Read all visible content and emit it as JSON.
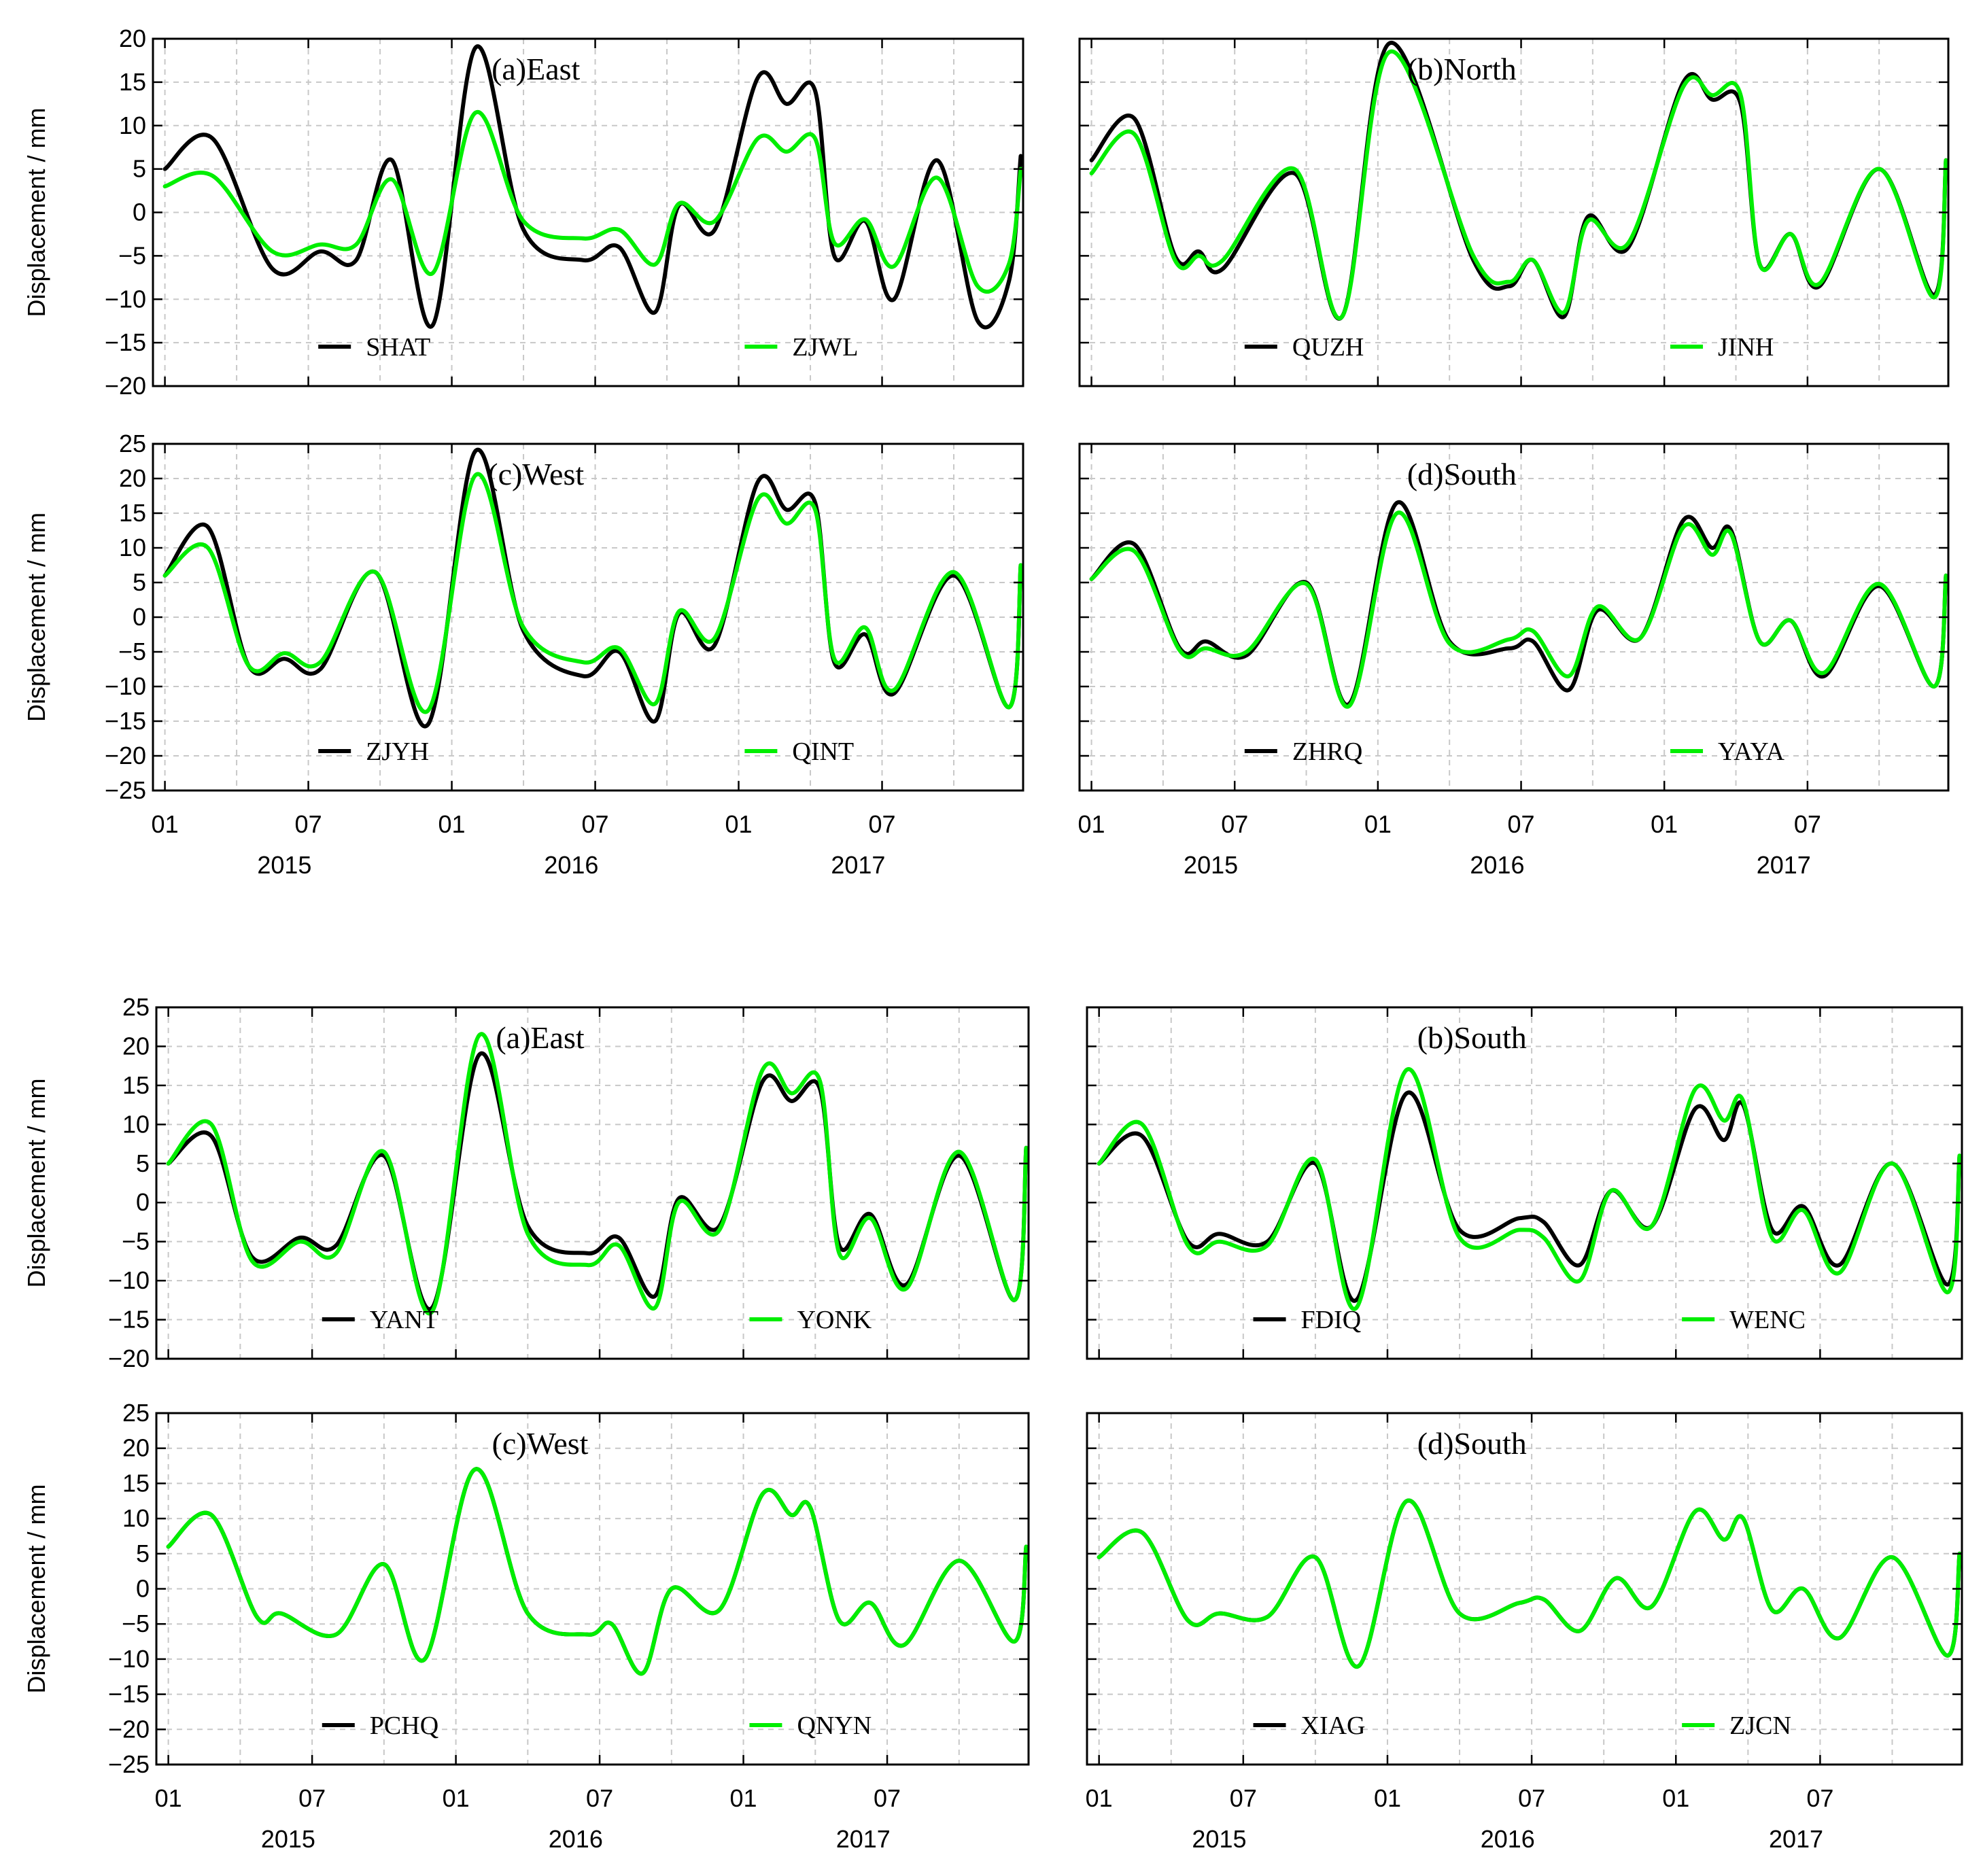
{
  "figure": {
    "ylabel": "Displacement / mm",
    "x_tick_labels": [
      "01",
      "07",
      "01",
      "07",
      "01",
      "07"
    ],
    "year_labels": [
      "2015",
      "2016",
      "2017"
    ],
    "series_colors": [
      "#000000",
      "#00ee00"
    ]
  },
  "chart_data": [
    {
      "type": "line",
      "title": "(a)East",
      "ylim": [
        -20,
        20
      ],
      "yticks": [
        -20,
        -15,
        -10,
        -5,
        0,
        5,
        10,
        15,
        20
      ],
      "x": [
        0,
        2,
        4.5,
        6.5,
        8,
        9.5,
        11.2,
        13,
        15,
        17.5,
        19,
        20.5,
        21.5,
        23,
        24.8,
        26,
        27.2,
        28,
        29.3,
        30.5,
        32.3,
        34,
        35.3,
        35.8
      ],
      "series": [
        {
          "name": "SHAT",
          "values": [
            5,
            8.5,
            -6.5,
            -4.5,
            -5.5,
            6,
            -13,
            19,
            -2,
            -5.5,
            -4,
            -11.5,
            0.8,
            -2,
            15.5,
            12.5,
            14,
            -5,
            -1,
            -10,
            6,
            -12.5,
            -8,
            6.5
          ]
        },
        {
          "name": "ZJWL",
          "values": [
            3,
            4.2,
            -4.5,
            -3.7,
            -3.7,
            3.8,
            -7,
            11.5,
            -1,
            -3,
            -2,
            -6,
            1,
            -1,
            8.5,
            7,
            8.5,
            -3.5,
            -0.8,
            -6.2,
            4,
            -8.5,
            -6,
            5
          ]
        }
      ]
    },
    {
      "type": "line",
      "title": "(b)North",
      "ylim": [
        -20,
        20
      ],
      "yticks": [
        -20,
        -15,
        -10,
        -5,
        0,
        5,
        10,
        15,
        20
      ],
      "x": [
        0,
        1.8,
        3.5,
        4.5,
        5.5,
        8.5,
        10.5,
        12.5,
        16,
        17.5,
        18.5,
        19.8,
        20.8,
        22.5,
        24.8,
        26,
        27.2,
        28,
        29.3,
        30.5,
        33,
        35.3,
        35.8
      ],
      "series": [
        {
          "name": "QUZH",
          "values": [
            6,
            10.8,
            -5,
            -4.5,
            -6.5,
            4.5,
            -12,
            19.5,
            -5.5,
            -8.5,
            -5.5,
            -12,
            -0.5,
            -4,
            15,
            13,
            12.5,
            -6,
            -2.5,
            -8.5,
            5,
            -9.5,
            6
          ]
        },
        {
          "name": "JINH",
          "values": [
            4.5,
            9,
            -5.5,
            -5,
            -5.5,
            5,
            -12,
            18.5,
            -5,
            -8,
            -5.5,
            -11.5,
            -1,
            -3.5,
            14.5,
            13.5,
            13.5,
            -6,
            -2.5,
            -8.2,
            5,
            -9.8,
            6
          ]
        }
      ]
    },
    {
      "type": "line",
      "title": "(c)West",
      "ylim": [
        -25,
        25
      ],
      "yticks": [
        -25,
        -20,
        -15,
        -10,
        -5,
        0,
        5,
        10,
        15,
        20,
        25
      ],
      "x": [
        0,
        1.8,
        3.5,
        5,
        6.5,
        8.8,
        11,
        13,
        15,
        17.5,
        19,
        20.5,
        21.5,
        23,
        24.8,
        26,
        27.2,
        28,
        29.3,
        30.5,
        33,
        35.3,
        35.8
      ],
      "series": [
        {
          "name": "ZJYH",
          "values": [
            6,
            13,
            -7,
            -6,
            -7.5,
            6.5,
            -15.5,
            24,
            -2,
            -8.5,
            -5,
            -15,
            0.5,
            -4,
            19.5,
            15.5,
            16.5,
            -6.5,
            -2.5,
            -11,
            6,
            -13,
            7.5
          ]
        },
        {
          "name": "QINT",
          "values": [
            6,
            10,
            -7,
            -5.2,
            -6.5,
            6.5,
            -13.5,
            20.5,
            -1.5,
            -6.5,
            -4.5,
            -12.5,
            0.8,
            -3,
            17,
            13.5,
            15.5,
            -6,
            -1.5,
            -10.5,
            6.5,
            -13,
            7.5
          ]
        }
      ]
    },
    {
      "type": "line",
      "title": "(d)South",
      "ylim": [
        -25,
        25
      ],
      "yticks": [
        -25,
        -20,
        -15,
        -10,
        -5,
        0,
        5,
        10,
        15,
        20,
        25
      ],
      "x": [
        0,
        1.8,
        3.7,
        4.8,
        6.5,
        9,
        10.8,
        12.8,
        15,
        17.5,
        18.5,
        20,
        21.2,
        23,
        24.8,
        26,
        26.8,
        28,
        29.3,
        30.7,
        33,
        35.3,
        35.8
      ],
      "series": [
        {
          "name": "ZHRQ",
          "values": [
            5.5,
            10.5,
            -4.5,
            -3.5,
            -5.5,
            5,
            -12.5,
            16.5,
            -3.5,
            -4.5,
            -3.5,
            -10.5,
            1,
            -3,
            14,
            10,
            12.5,
            -3.5,
            -0.5,
            -8.5,
            4.5,
            -10,
            6
          ]
        },
        {
          "name": "YAYA",
          "values": [
            5.5,
            9.5,
            -4.8,
            -4.5,
            -5,
            4.8,
            -12.8,
            15,
            -3.8,
            -3.2,
            -2,
            -8.5,
            1.5,
            -3,
            13,
            9,
            12,
            -3.5,
            -0.5,
            -8,
            4.8,
            -10,
            6
          ]
        }
      ]
    },
    {
      "type": "line",
      "title": "(a)East",
      "ylim": [
        -20,
        25
      ],
      "yticks": [
        -20,
        -15,
        -10,
        -5,
        0,
        5,
        10,
        15,
        20,
        25
      ],
      "x": [
        0,
        1.8,
        3.5,
        5.5,
        7,
        9,
        11,
        13,
        15,
        17.5,
        18.8,
        20.3,
        21.3,
        23,
        24.8,
        26,
        27.2,
        28,
        29.3,
        30.8,
        33,
        35.3,
        35.8
      ],
      "series": [
        {
          "name": "YANT",
          "values": [
            5,
            8.5,
            -7,
            -4.5,
            -5.5,
            6,
            -13.5,
            19,
            -3,
            -6.5,
            -4.5,
            -12,
            0.5,
            -3,
            15.5,
            13,
            14.5,
            -5.5,
            -1.5,
            -10.5,
            6,
            -12.5,
            7
          ]
        },
        {
          "name": "YONK",
          "values": [
            5,
            10,
            -7.5,
            -5,
            -6.5,
            6.5,
            -14,
            21.5,
            -4,
            -8,
            -5.5,
            -13.5,
            0,
            -3.5,
            17,
            14,
            15.5,
            -6.5,
            -2,
            -11,
            6.5,
            -12.5,
            7
          ]
        }
      ]
    },
    {
      "type": "line",
      "title": "(b)South",
      "ylim": [
        -20,
        25
      ],
      "yticks": [
        -20,
        -15,
        -10,
        -5,
        0,
        5,
        10,
        15,
        20,
        25
      ],
      "x": [
        0,
        1.8,
        3.7,
        5,
        7,
        9,
        10.7,
        12.8,
        15,
        17.5,
        18.5,
        20,
        21.3,
        23,
        24.8,
        26,
        26.8,
        28,
        29.3,
        30.8,
        33,
        35.3,
        35.8
      ],
      "series": [
        {
          "name": "FDIQ",
          "values": [
            5,
            8.5,
            -5,
            -4,
            -5,
            5,
            -12.5,
            14,
            -3.5,
            -2,
            -2.5,
            -8,
            1.5,
            -3,
            12,
            8,
            12.5,
            -3.5,
            -0.5,
            -8,
            5,
            -10.5,
            6
          ]
        },
        {
          "name": "WENC",
          "values": [
            5,
            10,
            -5.5,
            -5,
            -5.5,
            5.5,
            -13.5,
            17,
            -4.5,
            -3.5,
            -4.5,
            -10,
            1.5,
            -3,
            14.5,
            10.5,
            13,
            -4.5,
            -1,
            -9,
            5,
            -11.5,
            6
          ]
        }
      ]
    },
    {
      "type": "line",
      "title": "(c)West",
      "ylim": [
        -25,
        25
      ],
      "yticks": [
        -25,
        -20,
        -15,
        -10,
        -5,
        0,
        5,
        10,
        15,
        20,
        25
      ],
      "x": [
        0,
        1.8,
        3.7,
        4.7,
        7,
        9,
        10.7,
        12.8,
        15,
        17.5,
        18.5,
        19.8,
        21,
        23,
        24.8,
        26,
        26.8,
        28,
        29.3,
        30.7,
        33,
        35.3,
        35.8
      ],
      "series": [
        {
          "name": "PCHQ",
          "values": [
            6,
            10.5,
            -4,
            -3.5,
            -6.5,
            3.5,
            -10,
            17,
            -3.5,
            -6.5,
            -5,
            -12,
            0,
            -3,
            13.5,
            10.5,
            11.5,
            -4.5,
            -2,
            -8,
            4,
            -7.5,
            6
          ]
        },
        {
          "name": "QNYN",
          "values": [
            6,
            10.5,
            -4,
            -3.5,
            -6.5,
            3.5,
            -10,
            17,
            -3.5,
            -6.5,
            -5,
            -12,
            0,
            -3,
            13.5,
            10.5,
            11.5,
            -4.5,
            -2,
            -8,
            4,
            -7.5,
            6
          ]
        }
      ]
    },
    {
      "type": "line",
      "title": "(d)South",
      "ylim": [
        -25,
        25
      ],
      "yticks": [
        -25,
        -20,
        -15,
        -10,
        -5,
        0,
        5,
        10,
        15,
        20,
        25
      ],
      "x": [
        0,
        1.8,
        3.7,
        5,
        7,
        9,
        10.8,
        12.8,
        15,
        17.5,
        18.5,
        20,
        21.5,
        23,
        24.8,
        26,
        26.8,
        28,
        29.3,
        30.8,
        33,
        35.3,
        35.8
      ],
      "series": [
        {
          "name": "XIAG",
          "values": [
            4.5,
            8,
            -4.5,
            -3.5,
            -4,
            4.5,
            -11,
            12.5,
            -3.5,
            -2,
            -1.5,
            -6,
            1.5,
            -2.5,
            11,
            7,
            10,
            -3,
            0,
            -7,
            4.5,
            -9.5,
            5
          ]
        },
        {
          "name": "ZJCN",
          "values": [
            4.5,
            8,
            -4.5,
            -3.5,
            -4,
            4.5,
            -11,
            12.5,
            -3.5,
            -2,
            -1.5,
            -6,
            1.5,
            -2.5,
            11,
            7,
            10,
            -3,
            0,
            -7,
            4.5,
            -9.5,
            5
          ]
        }
      ]
    }
  ]
}
